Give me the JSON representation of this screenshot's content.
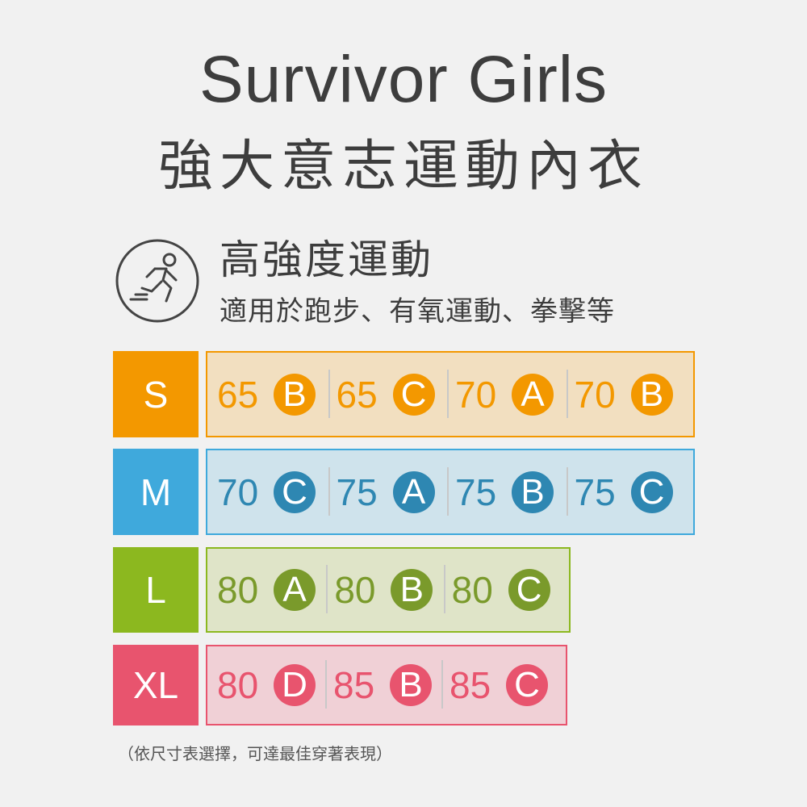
{
  "header": {
    "title": "Survivor Girls",
    "subtitle": "強大意志運動內衣"
  },
  "category": {
    "icon": "running-person-icon",
    "title": "高強度運動",
    "description": "適用於跑步、有氧運動、拳擊等"
  },
  "sizes": [
    {
      "label": "S",
      "color": "#f39800",
      "text_color": "#f39800",
      "bg": "#f2dfc0",
      "items": [
        {
          "band": "65",
          "cup": "B"
        },
        {
          "band": "65",
          "cup": "C"
        },
        {
          "band": "70",
          "cup": "A"
        },
        {
          "band": "70",
          "cup": "B"
        }
      ]
    },
    {
      "label": "M",
      "color": "#3fa9dc",
      "text_color": "#2e87b2",
      "bg": "#cfe3ec",
      "items": [
        {
          "band": "70",
          "cup": "C"
        },
        {
          "band": "75",
          "cup": "A"
        },
        {
          "band": "75",
          "cup": "B"
        },
        {
          "band": "75",
          "cup": "C"
        }
      ]
    },
    {
      "label": "L",
      "color": "#8cb81f",
      "text_color": "#7a9a2b",
      "bg": "#dfe4c8",
      "items": [
        {
          "band": "80",
          "cup": "A"
        },
        {
          "band": "80",
          "cup": "B"
        },
        {
          "band": "80",
          "cup": "C"
        }
      ]
    },
    {
      "label": "XL",
      "color": "#e8546e",
      "text_color": "#e8546e",
      "bg": "#f0d0d6",
      "items": [
        {
          "band": "80",
          "cup": "D"
        },
        {
          "band": "85",
          "cup": "B"
        },
        {
          "band": "85",
          "cup": "C"
        }
      ]
    }
  ],
  "note": "（依尺寸表選擇，可達最佳穿著表現）"
}
